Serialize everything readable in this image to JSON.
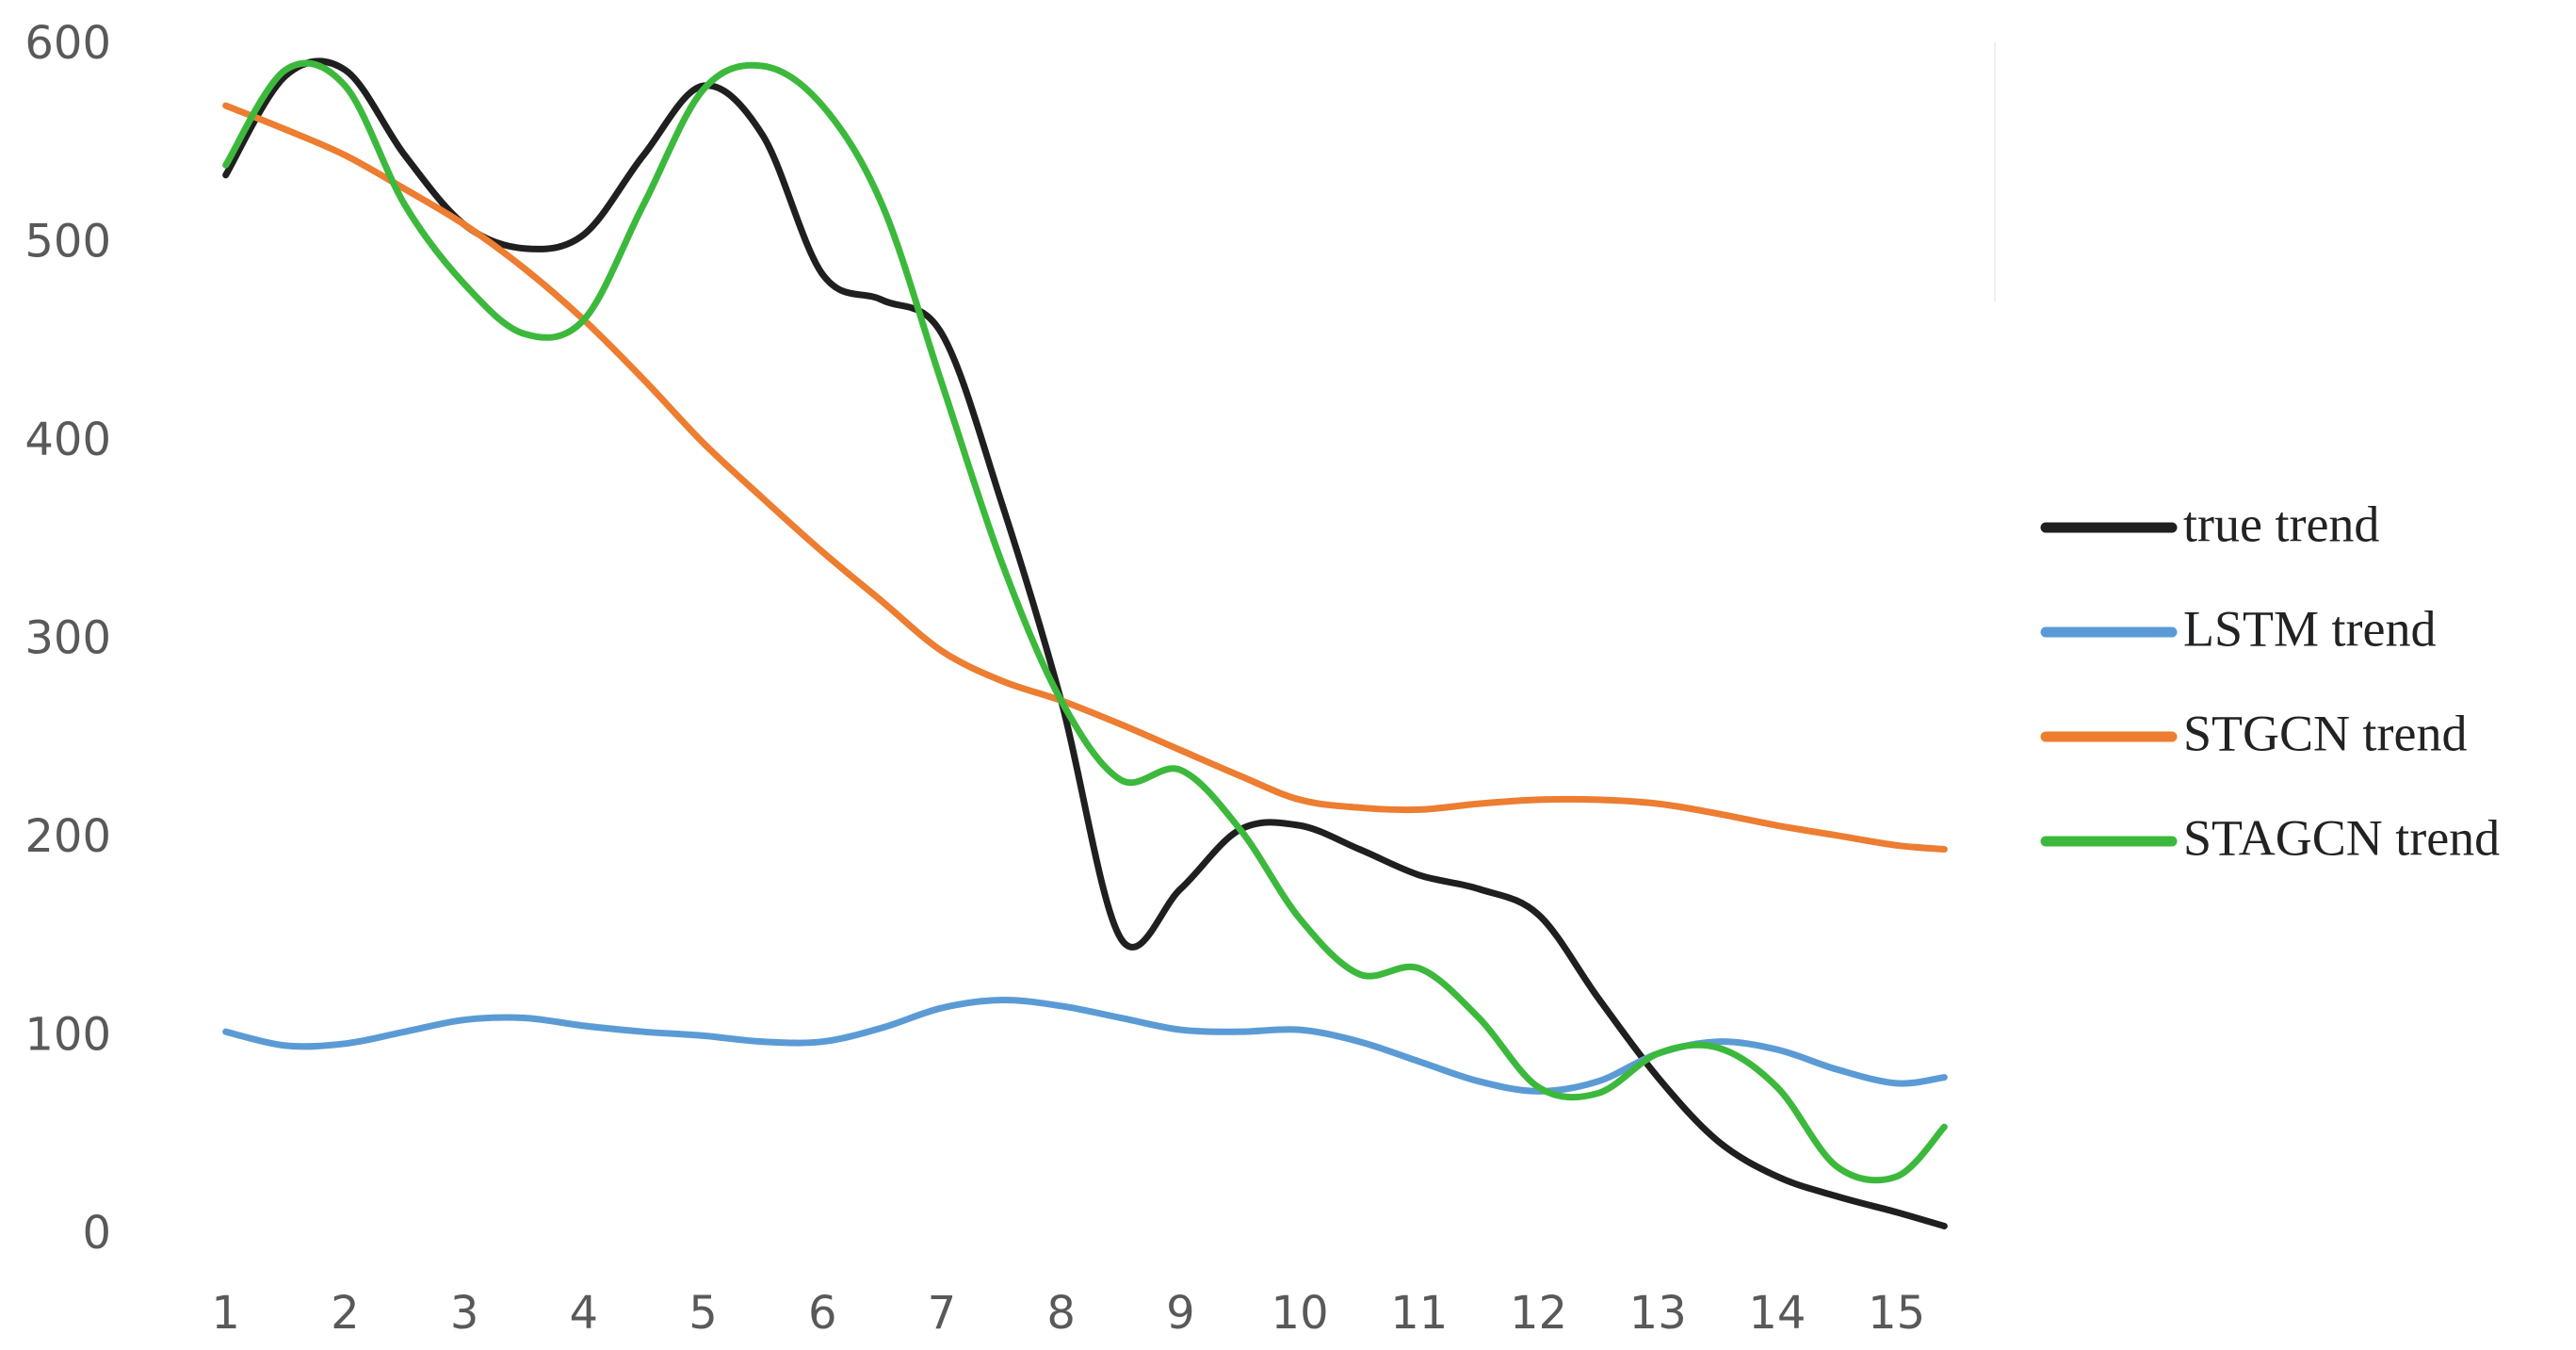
{
  "chart_data": {
    "type": "line",
    "x": [
      1,
      1.5,
      2,
      2.5,
      3,
      3.5,
      4,
      4.5,
      5,
      5.5,
      6,
      6.5,
      7,
      7.5,
      8,
      8.5,
      9,
      9.5,
      10,
      10.5,
      11,
      11.5,
      12,
      12.5,
      13,
      13.5,
      14,
      14.5,
      15,
      15.4
    ],
    "series": [
      {
        "name": "true trend",
        "color": "#1f1f1f",
        "values": [
          535,
          585,
          588,
          545,
          510,
          498,
          505,
          545,
          580,
          555,
          485,
          472,
          455,
          370,
          270,
          150,
          175,
          205,
          207,
          195,
          182,
          175,
          162,
          120,
          80,
          48,
          30,
          20,
          12,
          5
        ]
      },
      {
        "name": "LSTM trend",
        "color": "#5b9bd5",
        "values": [
          103,
          96,
          97,
          103,
          109,
          110,
          106,
          103,
          101,
          98,
          98,
          105,
          115,
          119,
          116,
          110,
          104,
          103,
          104,
          98,
          88,
          78,
          73,
          78,
          92,
          98,
          94,
          84,
          77,
          80
        ]
      },
      {
        "name": "STGCN trend",
        "color": "#ed7d31",
        "values": [
          570,
          558,
          545,
          528,
          510,
          488,
          462,
          432,
          400,
          372,
          345,
          320,
          295,
          280,
          270,
          258,
          245,
          232,
          220,
          216,
          215,
          218,
          220,
          220,
          218,
          213,
          207,
          202,
          197,
          195
        ]
      },
      {
        "name": "STAGCN trend",
        "color": "#3cb93c",
        "values": [
          540,
          588,
          580,
          520,
          480,
          455,
          462,
          520,
          578,
          590,
          570,
          520,
          430,
          340,
          270,
          230,
          235,
          205,
          160,
          132,
          135,
          110,
          75,
          72,
          92,
          95,
          75,
          35,
          30,
          55
        ]
      }
    ],
    "xlim": [
      0.9,
      15.5
    ],
    "xticks": [
      1,
      2,
      3,
      4,
      5,
      6,
      7,
      8,
      9,
      10,
      11,
      12,
      13,
      14,
      15
    ],
    "ylim": [
      0,
      600
    ],
    "yticks": [
      0,
      100,
      200,
      300,
      400,
      500,
      600
    ],
    "grid": false,
    "legend": "right"
  }
}
